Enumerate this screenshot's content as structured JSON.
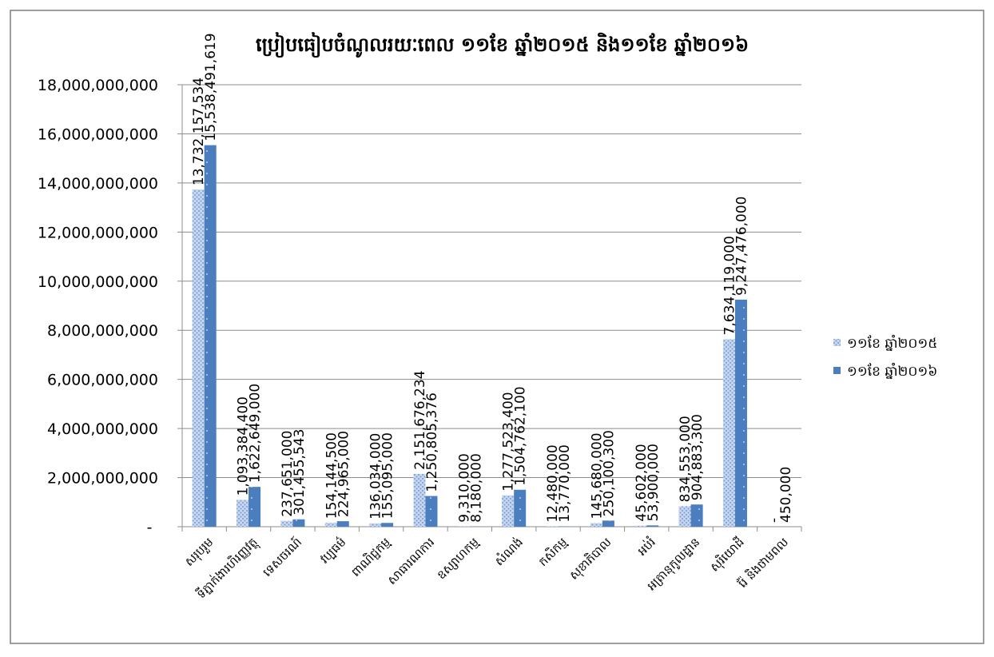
{
  "chart_data": {
    "type": "bar",
    "title": "ប្រៀបធៀបចំណូលរយៈពេល ១១ខែ ឆ្នាំ២០១៥ និង១១ខែ ឆ្នាំ២០១៦",
    "xlabel": "",
    "ylabel": "",
    "ylim": [
      0,
      18000000000
    ],
    "yticks": [
      0,
      2000000000,
      4000000000,
      6000000000,
      8000000000,
      10000000000,
      12000000000,
      14000000000,
      16000000000,
      18000000000
    ],
    "ytick_labels": [
      "-",
      "2,000,000,000",
      "4,000,000,000",
      "6,000,000,000",
      "8,000,000,000",
      "10,000,000,000",
      "12,000,000,000",
      "14,000,000,000",
      "16,000,000,000",
      "18,000,000,000"
    ],
    "grid": true,
    "legend_position": "right",
    "categories": [
      "សរុបរួម",
      "ទីភ្នាក់ងារហិរញ្ញវត្ថុ",
      "ទេសចរណ៍",
      "វប្បធម៌",
      "ពាណិជ្ជកម្ម",
      "សាធារណការ",
      "ឧស្សាហកម្ម",
      "សំណង់",
      "កសិកម្ម",
      "សុខាភិបាល",
      "អប់រំ",
      "អត្រានុកូលដ្ឋាន",
      "សុរិយោដី",
      "រ៉ែ និងថាមពល"
    ],
    "series": [
      {
        "name": "១១ខែ ឆ្នាំ២០១៥",
        "color": "#a9c1e6",
        "pattern": "dotted",
        "values": [
          13732157534,
          1093384400,
          237651000,
          154144500,
          136034000,
          2151676234,
          9310000,
          1277523400,
          12480000,
          145680000,
          45602000,
          834553000,
          7634119000,
          0
        ],
        "labels": [
          "13,732,157,534",
          "1,093,384,400",
          "237,651,000",
          "154,144,500",
          "136,034,000",
          "2,151,676,234",
          "9,310,000",
          "1,277,523,400",
          "12,480,000",
          "145,680,000",
          "45,602,000",
          "834,553,000",
          "7,634,119,000",
          "-"
        ]
      },
      {
        "name": "១១ខែ ឆ្នាំ២០១៦",
        "color": "#4a7ebf",
        "pattern": "solid",
        "values": [
          15538491619,
          1622649000,
          301455543,
          224965000,
          155095000,
          1250805376,
          8180000,
          1504762100,
          13770000,
          250100300,
          53900000,
          904883300,
          9247476000,
          450000
        ],
        "labels": [
          "15,538,491,619",
          "1,622,649,000",
          "301,455,543",
          "224,965,000",
          "155,095,000",
          "1,250,805,376",
          "8,180,000",
          "1,504,762,100",
          "13,770,000",
          "250,100,300",
          "53,900,000",
          "904,883,300",
          "9,247,476,000",
          "450,000"
        ]
      }
    ]
  }
}
